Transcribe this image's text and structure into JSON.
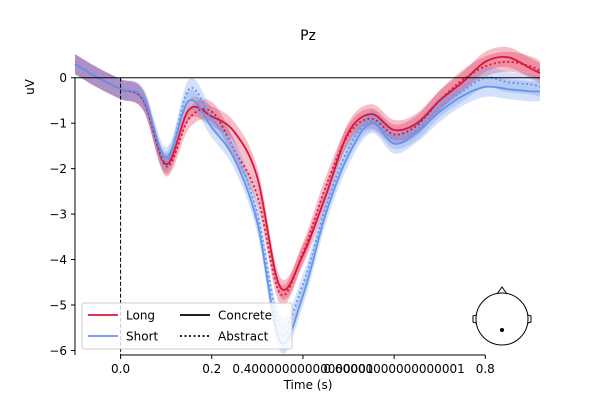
{
  "chart_data": {
    "type": "line",
    "title": "Pz",
    "xlabel": "Time (s)",
    "ylabel": "uV",
    "xlim": [
      -0.1,
      0.92
    ],
    "ylim": [
      -6.1,
      0.5
    ],
    "x_ticks": [
      0.0,
      0.2,
      0.4,
      0.6,
      0.8
    ],
    "x_tick_labels": [
      "0.0",
      "0.2",
      "0.40000000000000001",
      "0.60000000000000001",
      "0.8"
    ],
    "y_ticks": [
      0,
      -1,
      -2,
      -3,
      -4,
      -5,
      -6
    ],
    "y_tick_labels": [
      "0",
      "−1",
      "−2",
      "−3",
      "−4",
      "−5",
      "−6"
    ],
    "zero_line": 0,
    "event_marker_x": 0.0,
    "grid": false,
    "legend": {
      "position": "lower-left",
      "entries": [
        {
          "label": "Long",
          "color": "#dc143c",
          "style": "solid"
        },
        {
          "label": "Short",
          "color": "#6495ed",
          "style": "solid"
        },
        {
          "label": "Concrete",
          "color": "#000000",
          "style": "solid"
        },
        {
          "label": "Abstract",
          "color": "#000000",
          "style": "dotted"
        }
      ]
    },
    "sensor_inset": {
      "position": "bottom-right"
    },
    "x": [
      -0.1,
      -0.05,
      0.0,
      0.05,
      0.1,
      0.15,
      0.2,
      0.25,
      0.3,
      0.35,
      0.4,
      0.45,
      0.5,
      0.55,
      0.6,
      0.65,
      0.7,
      0.75,
      0.8,
      0.85,
      0.9,
      0.92
    ],
    "series": [
      {
        "name": "Long",
        "condition": "Concrete",
        "color": "#dc143c",
        "style": "solid",
        "values": [
          0.3,
          0.0,
          -0.25,
          -0.5,
          -1.9,
          -0.7,
          -0.85,
          -1.2,
          -2.2,
          -4.6,
          -3.9,
          -2.6,
          -1.2,
          -0.8,
          -1.15,
          -1.0,
          -0.5,
          -0.1,
          0.35,
          0.45,
          0.2,
          0.1
        ]
      },
      {
        "name": "Long",
        "condition": "Abstract",
        "color": "#dc143c",
        "style": "dotted",
        "values": [
          0.3,
          0.0,
          -0.25,
          -0.5,
          -1.95,
          -0.9,
          -0.75,
          -1.6,
          -2.6,
          -4.75,
          -3.85,
          -2.4,
          -1.25,
          -0.9,
          -1.25,
          -1.05,
          -0.5,
          -0.05,
          0.25,
          0.35,
          0.25,
          0.15
        ]
      },
      {
        "name": "Short",
        "condition": "Concrete",
        "color": "#6495ed",
        "style": "solid",
        "values": [
          0.3,
          0.0,
          -0.25,
          -0.45,
          -1.75,
          -0.5,
          -1.1,
          -1.8,
          -3.2,
          -5.8,
          -4.8,
          -3.0,
          -1.7,
          -1.0,
          -1.45,
          -1.2,
          -0.75,
          -0.4,
          -0.2,
          -0.25,
          -0.3,
          -0.3
        ]
      },
      {
        "name": "Short",
        "condition": "Abstract",
        "color": "#6495ed",
        "style": "dotted",
        "values": [
          0.3,
          0.0,
          -0.25,
          -0.5,
          -1.85,
          -0.25,
          -0.9,
          -1.6,
          -3.0,
          -5.45,
          -4.55,
          -2.85,
          -1.55,
          -0.95,
          -1.35,
          -1.15,
          -0.65,
          -0.3,
          0.0,
          -0.1,
          -0.15,
          -0.2
        ]
      }
    ]
  }
}
